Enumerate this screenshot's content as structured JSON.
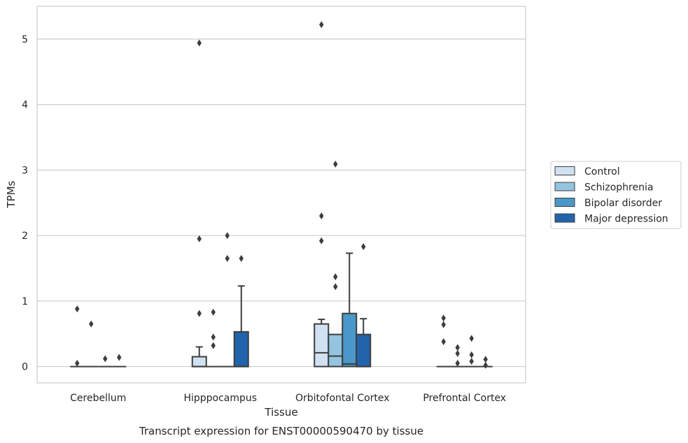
{
  "chart_data": {
    "type": "box",
    "title": "",
    "caption": "Transcript expression for ENST00000590470 by tissue",
    "xlabel": "Tissue",
    "ylabel": "TPMs",
    "ylim": [
      -0.25,
      5.5
    ],
    "yticks": [
      0,
      1,
      2,
      3,
      4,
      5
    ],
    "grid": "horizontal",
    "legend_position": "right",
    "categories": [
      "Cerebellum",
      "Hipppocampus",
      "Orbitofontal Cortex",
      "Prefrontal Cortex"
    ],
    "series": [
      {
        "name": "Control",
        "color": "#d0e1f2",
        "boxes": [
          {
            "q1": 0,
            "median": 0,
            "q3": 0,
            "whisker_low": 0,
            "whisker_high": 0,
            "outliers": [
              0.88,
              0.05
            ]
          },
          {
            "q1": 0,
            "median": 0,
            "q3": 0.15,
            "whisker_low": 0,
            "whisker_high": 0.3,
            "outliers": [
              4.94,
              1.95,
              0.81
            ]
          },
          {
            "q1": 0,
            "median": 0.21,
            "q3": 0.65,
            "whisker_low": 0,
            "whisker_high": 0.72,
            "outliers": [
              5.22,
              2.3,
              1.92
            ]
          },
          {
            "q1": 0,
            "median": 0,
            "q3": 0,
            "whisker_low": 0,
            "whisker_high": 0,
            "outliers": [
              0.74,
              0.64,
              0.38
            ]
          }
        ]
      },
      {
        "name": "Schizophrenia",
        "color": "#94c4df",
        "boxes": [
          {
            "q1": 0,
            "median": 0,
            "q3": 0,
            "whisker_low": 0,
            "whisker_high": 0,
            "outliers": [
              0.65
            ]
          },
          {
            "q1": 0,
            "median": 0,
            "q3": 0,
            "whisker_low": 0,
            "whisker_high": 0,
            "outliers": [
              0.83,
              0.45,
              0.32
            ]
          },
          {
            "q1": 0,
            "median": 0.16,
            "q3": 0.49,
            "whisker_low": 0,
            "whisker_high": 0.49,
            "outliers": [
              3.09,
              1.37,
              1.22
            ]
          },
          {
            "q1": 0,
            "median": 0,
            "q3": 0,
            "whisker_low": 0,
            "whisker_high": 0,
            "outliers": [
              0.29,
              0.2,
              0.05
            ]
          }
        ]
      },
      {
        "name": "Bipolar disorder",
        "color": "#4a98c9",
        "boxes": [
          {
            "q1": 0,
            "median": 0,
            "q3": 0,
            "whisker_low": 0,
            "whisker_high": 0,
            "outliers": [
              0.12
            ]
          },
          {
            "q1": 0,
            "median": 0,
            "q3": 0,
            "whisker_low": 0,
            "whisker_high": 0,
            "outliers": [
              2.0,
              1.65
            ]
          },
          {
            "q1": 0,
            "median": 0.04,
            "q3": 0.81,
            "whisker_low": 0,
            "whisker_high": 1.73,
            "outliers": []
          },
          {
            "q1": 0,
            "median": 0,
            "q3": 0,
            "whisker_low": 0,
            "whisker_high": 0,
            "outliers": [
              0.43,
              0.18,
              0.08
            ]
          }
        ]
      },
      {
        "name": "Major depression",
        "color": "#2164ab",
        "boxes": [
          {
            "q1": 0,
            "median": 0,
            "q3": 0,
            "whisker_low": 0,
            "whisker_high": 0,
            "outliers": [
              0.14
            ]
          },
          {
            "q1": 0,
            "median": 0,
            "q3": 0.53,
            "whisker_low": 0,
            "whisker_high": 1.23,
            "outliers": [
              1.65
            ]
          },
          {
            "q1": 0,
            "median": 0,
            "q3": 0.49,
            "whisker_low": 0,
            "whisker_high": 0.73,
            "outliers": [
              1.83
            ]
          },
          {
            "q1": 0,
            "median": 0,
            "q3": 0,
            "whisker_low": 0,
            "whisker_high": 0,
            "outliers": [
              0.11,
              0.02
            ]
          }
        ]
      }
    ]
  }
}
